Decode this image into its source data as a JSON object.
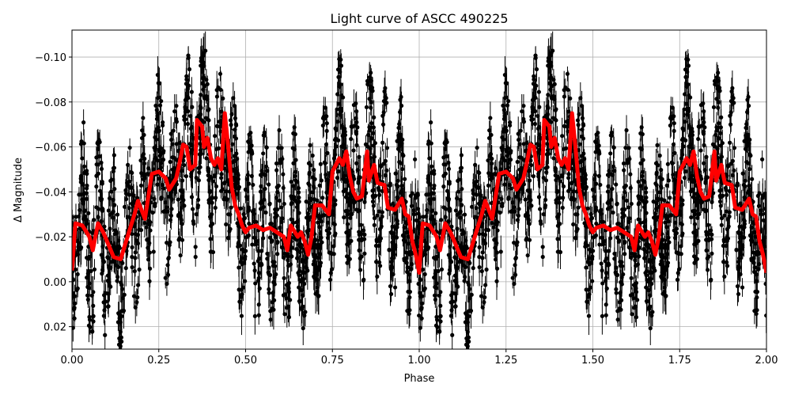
{
  "chart_data": {
    "type": "scatter",
    "title": "Light curve of ASCC 490225",
    "xlabel": "Phase",
    "ylabel": "Δ Magnitude",
    "xlim": [
      0,
      2
    ],
    "ylim": [
      0.03,
      -0.112
    ],
    "y_inverted": true,
    "grid": true,
    "xticks": [
      "0.00",
      "0.25",
      "0.50",
      "0.75",
      "1.00",
      "1.25",
      "1.50",
      "1.75",
      "2.00"
    ],
    "xtick_values": [
      0,
      0.25,
      0.5,
      0.75,
      1,
      1.25,
      1.5,
      1.75,
      2
    ],
    "yticks": [
      "−0.10",
      "−0.08",
      "−0.06",
      "−0.04",
      "−0.02",
      "0.00",
      "0.02"
    ],
    "ytick_values": [
      -0.1,
      -0.08,
      -0.06,
      -0.04,
      -0.02,
      0.0,
      0.02
    ],
    "series": [
      {
        "kind": "errorbar-points",
        "color": "#000000"
      },
      {
        "kind": "line",
        "color": "#ff0000",
        "periodic": true,
        "phase": [
          0.0,
          0.01,
          0.03,
          0.05,
          0.06,
          0.075,
          0.09,
          0.12,
          0.14,
          0.16,
          0.18,
          0.19,
          0.2,
          0.21,
          0.22,
          0.23,
          0.25,
          0.27,
          0.28,
          0.3,
          0.31,
          0.32,
          0.33,
          0.34,
          0.355,
          0.36,
          0.375,
          0.38,
          0.39,
          0.4,
          0.41,
          0.42,
          0.43,
          0.44,
          0.45,
          0.46,
          0.47,
          0.48,
          0.49,
          0.5,
          0.51,
          0.53,
          0.55,
          0.57,
          0.59,
          0.61,
          0.62,
          0.63,
          0.65,
          0.66,
          0.67,
          0.68,
          0.69,
          0.7,
          0.72,
          0.74,
          0.75,
          0.77,
          0.78,
          0.79,
          0.8,
          0.81,
          0.82,
          0.835,
          0.85,
          0.855,
          0.87,
          0.88,
          0.9,
          0.91,
          0.93,
          0.95,
          0.96,
          0.97,
          0.98,
          0.99,
          1.0
        ],
        "magnitude": [
          -0.005,
          -0.026,
          -0.025,
          -0.02,
          -0.014,
          -0.026,
          -0.022,
          -0.011,
          -0.01,
          -0.02,
          -0.03,
          -0.036,
          -0.032,
          -0.028,
          -0.038,
          -0.048,
          -0.049,
          -0.046,
          -0.041,
          -0.046,
          -0.053,
          -0.061,
          -0.06,
          -0.05,
          -0.052,
          -0.072,
          -0.069,
          -0.06,
          -0.064,
          -0.055,
          -0.052,
          -0.055,
          -0.05,
          -0.075,
          -0.06,
          -0.042,
          -0.034,
          -0.03,
          -0.025,
          -0.022,
          -0.024,
          -0.025,
          -0.023,
          -0.024,
          -0.022,
          -0.02,
          -0.014,
          -0.025,
          -0.02,
          -0.022,
          -0.018,
          -0.012,
          -0.02,
          -0.034,
          -0.034,
          -0.03,
          -0.049,
          -0.055,
          -0.052,
          -0.058,
          -0.047,
          -0.04,
          -0.037,
          -0.038,
          -0.058,
          -0.045,
          -0.052,
          -0.044,
          -0.043,
          -0.033,
          -0.032,
          -0.037,
          -0.03,
          -0.029,
          -0.018,
          -0.012,
          -0.004
        ]
      }
    ]
  }
}
